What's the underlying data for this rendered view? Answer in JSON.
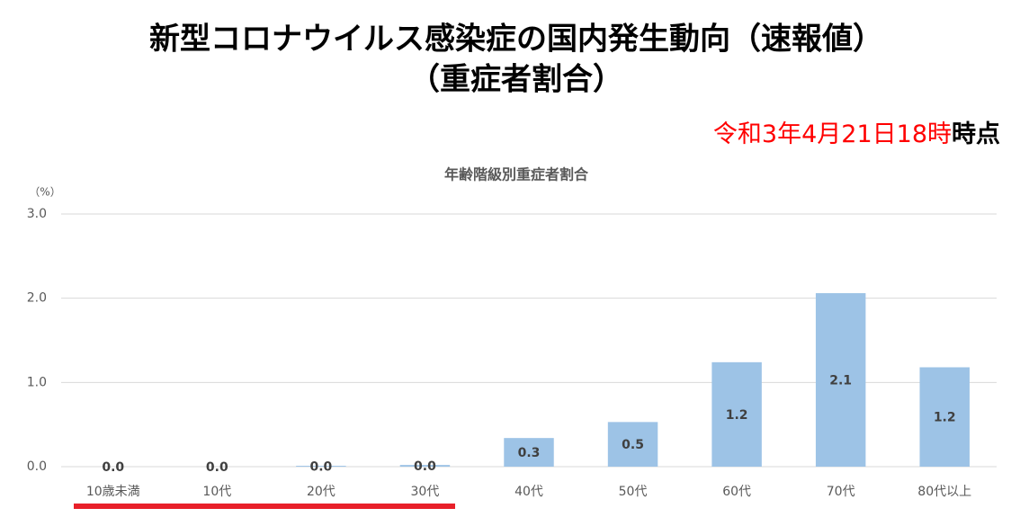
{
  "header": {
    "title_line1": "新型コロナウイルス感染症の国内発生動向（速報値）",
    "title_line2": "（重症者割合）",
    "date": "令和3年4月21日18時",
    "date_suffix": "時点"
  },
  "chart_data": {
    "type": "bar",
    "title": "年齢階級別重症者割合",
    "y_unit": "（%）",
    "categories": [
      "10歳未満",
      "10代",
      "20代",
      "30代",
      "40代",
      "50代",
      "60代",
      "70代",
      "80代以上"
    ],
    "values": [
      0,
      0,
      0.01,
      0.02,
      0.34,
      0.53,
      1.24,
      2.06,
      1.18
    ],
    "value_labels": [
      "0.0",
      "0.0",
      "0.0",
      "0.0",
      "0.3",
      "0.5",
      "1.2",
      "2.1",
      "1.2"
    ],
    "color": "#9dc3e6",
    "ylim": [
      0,
      3
    ],
    "yticks": [
      {
        "value": 0,
        "label": "0.0"
      },
      {
        "value": 1,
        "label": "1.0"
      },
      {
        "value": 2,
        "label": "2.0"
      },
      {
        "value": 3,
        "label": "3.0"
      }
    ],
    "grid": true
  }
}
